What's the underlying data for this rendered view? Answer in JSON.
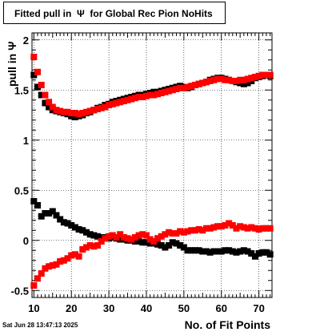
{
  "title": "Fitted pull in  Ψ  for Global Rec Pion NoHits",
  "timestamp": "Sat Jun 28 13:47:13 2025",
  "chart_data": {
    "type": "scatter",
    "title": "Fitted pull in  Ψ  for Global Rec Pion NoHits",
    "xlabel": "No. of Fit Points",
    "ylabel": "pull in  Ψ",
    "xlim": [
      9.5,
      73.5
    ],
    "ylim": [
      -0.57,
      2.07
    ],
    "x_ticks": [
      10,
      20,
      30,
      40,
      50,
      60,
      70
    ],
    "y_ticks": [
      -0.5,
      0,
      0.5,
      1,
      1.5,
      2
    ],
    "x_tick_labels": [
      "10",
      "20",
      "30",
      "40",
      "50",
      "60",
      "70"
    ],
    "y_tick_labels": [
      "-0.5",
      "0",
      "0.5",
      "1",
      "1.5",
      "2"
    ],
    "grid": true,
    "x": [
      10,
      11,
      12,
      13,
      14,
      15,
      16,
      17,
      18,
      19,
      20,
      21,
      22,
      23,
      24,
      25,
      26,
      27,
      28,
      29,
      30,
      31,
      32,
      33,
      34,
      35,
      36,
      37,
      38,
      39,
      40,
      41,
      42,
      43,
      44,
      45,
      46,
      47,
      48,
      49,
      50,
      51,
      52,
      53,
      54,
      55,
      56,
      57,
      58,
      59,
      60,
      61,
      62,
      63,
      64,
      65,
      66,
      67,
      68,
      69,
      70,
      71,
      72,
      73
    ],
    "series": [
      {
        "color": "#000000",
        "role": "sigma",
        "values": [
          1.65,
          1.53,
          1.45,
          1.37,
          1.33,
          1.3,
          1.29,
          1.28,
          1.27,
          1.26,
          1.24,
          1.23,
          1.24,
          1.25,
          1.27,
          1.28,
          1.3,
          1.32,
          1.33,
          1.35,
          1.36,
          1.38,
          1.39,
          1.4,
          1.41,
          1.42,
          1.43,
          1.44,
          1.45,
          1.45,
          1.46,
          1.47,
          1.48,
          1.48,
          1.49,
          1.5,
          1.51,
          1.52,
          1.53,
          1.54,
          1.53,
          1.52,
          1.53,
          1.55,
          1.56,
          1.57,
          1.58,
          1.6,
          1.61,
          1.62,
          1.62,
          1.61,
          1.6,
          1.59,
          1.58,
          1.57,
          1.56,
          1.57,
          1.59,
          1.62,
          1.63,
          1.64,
          1.65,
          1.64
        ]
      },
      {
        "color": "#ff0000",
        "role": "sigma",
        "values": [
          1.83,
          1.68,
          1.55,
          1.45,
          1.38,
          1.33,
          1.3,
          1.29,
          1.28,
          1.28,
          1.27,
          1.27,
          1.26,
          1.27,
          1.28,
          1.29,
          1.3,
          1.31,
          1.32,
          1.33,
          1.35,
          1.36,
          1.37,
          1.38,
          1.39,
          1.4,
          1.41,
          1.42,
          1.43,
          1.43,
          1.44,
          1.45,
          1.45,
          1.46,
          1.47,
          1.48,
          1.49,
          1.5,
          1.51,
          1.52,
          1.52,
          1.53,
          1.54,
          1.55,
          1.56,
          1.57,
          1.58,
          1.59,
          1.6,
          1.61,
          1.61,
          1.6,
          1.6,
          1.59,
          1.59,
          1.6,
          1.6,
          1.61,
          1.62,
          1.63,
          1.64,
          1.65,
          1.65,
          1.65
        ]
      },
      {
        "color": "#000000",
        "role": "mean",
        "values": [
          0.39,
          0.35,
          0.24,
          0.27,
          0.27,
          0.29,
          0.25,
          0.21,
          0.18,
          0.17,
          0.15,
          0.13,
          0.11,
          0.1,
          0.08,
          0.06,
          0.05,
          0.04,
          0.03,
          0.03,
          0.02,
          0.03,
          0.02,
          0.01,
          0.01,
          0.0,
          0.0,
          -0.01,
          -0.01,
          -0.02,
          -0.02,
          -0.03,
          -0.03,
          -0.04,
          -0.05,
          -0.07,
          -0.05,
          -0.02,
          -0.03,
          -0.05,
          -0.07,
          -0.1,
          -0.1,
          -0.1,
          -0.1,
          -0.11,
          -0.11,
          -0.12,
          -0.11,
          -0.11,
          -0.11,
          -0.1,
          -0.1,
          -0.11,
          -0.12,
          -0.11,
          -0.1,
          -0.11,
          -0.13,
          -0.16,
          -0.13,
          -0.12,
          -0.12,
          -0.14
        ]
      },
      {
        "color": "#ff0000",
        "role": "mean",
        "values": [
          -0.45,
          -0.38,
          -0.33,
          -0.28,
          -0.26,
          -0.25,
          -0.24,
          -0.21,
          -0.2,
          -0.18,
          -0.15,
          -0.14,
          -0.16,
          -0.09,
          -0.07,
          -0.05,
          -0.06,
          -0.05,
          -0.01,
          0.02,
          0.04,
          0.05,
          0.03,
          0.06,
          0.03,
          0.02,
          0.01,
          0.03,
          0.05,
          0.06,
          0.05,
          0.01,
          -0.01,
          0.02,
          0.04,
          0.06,
          0.08,
          0.07,
          0.07,
          0.09,
          0.08,
          0.09,
          0.1,
          0.1,
          0.11,
          0.1,
          0.12,
          0.12,
          0.13,
          0.14,
          0.14,
          0.15,
          0.17,
          0.15,
          0.12,
          0.14,
          0.13,
          0.12,
          0.13,
          0.12,
          0.11,
          0.12,
          0.12,
          0.12
        ]
      }
    ]
  }
}
